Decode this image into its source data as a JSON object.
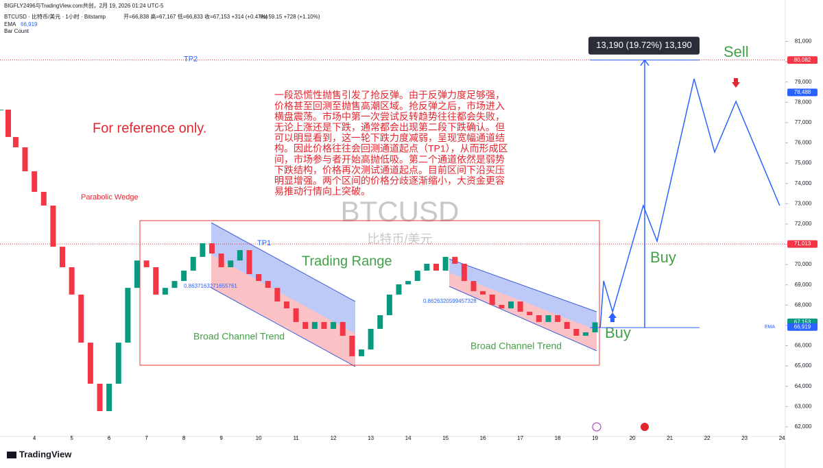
{
  "header": {
    "credit": "BIGFLY2496与TradingView.com共创，2月 19, 2026 01:24 UTC-5",
    "symbol": "BTCUSD · 比特币/美元 · 1小时 · Bitstamp",
    "ohlc": "开=66,838 高=67,167 低=66,833 收=67,153 +314 (+0.47%)",
    "vol": "Vol 59.15 +728 (+1.10%)",
    "ema": "EMA",
    "ema_value": "66,919",
    "bar_count": "Bar Count"
  },
  "chart_data": {
    "type": "candlestick",
    "watermark": "BTCUSD",
    "watermark_sub": "比特币/美元",
    "x": [
      3.1,
      3.3,
      3.5,
      3.75,
      4.0,
      4.25,
      4.5,
      4.75,
      5.0,
      5.25,
      5.5,
      5.75,
      6.0,
      6.25,
      6.5,
      6.75,
      7.0,
      7.25,
      7.5,
      7.75,
      8.0,
      8.25,
      8.5,
      8.75,
      9.0,
      9.25,
      9.5,
      9.75,
      10.0,
      10.25,
      10.5,
      10.75,
      11.0,
      11.25,
      11.5,
      11.75,
      12.0,
      12.25,
      12.5,
      12.75,
      13.0,
      13.25,
      13.5,
      13.75,
      14.0,
      14.25,
      14.5,
      14.75,
      15.0,
      15.25,
      15.5,
      15.75,
      16.0,
      16.25,
      16.5,
      16.75,
      17.0,
      17.25,
      17.5,
      17.75,
      18.0,
      18.25,
      18.5,
      18.75,
      19.0
    ],
    "values": [
      77640,
      76290,
      75780,
      74600,
      73585,
      72910,
      70880,
      69870,
      68520,
      66150,
      64125,
      62775,
      64125,
      66150,
      68850,
      70200,
      69870,
      68520,
      68850,
      69190,
      69700,
      70380,
      71050,
      70545,
      69870,
      70200,
      70710,
      69530,
      69190,
      68850,
      68180,
      67840,
      67170,
      66830,
      67170,
      66830,
      67170,
      66490,
      65480,
      65815,
      66830,
      67505,
      68520,
      69025,
      69190,
      69700,
      70040,
      69700,
      70380,
      70040,
      69190,
      68690,
      68520,
      68010,
      67840,
      68180,
      67675,
      67505,
      67170,
      67505,
      67170,
      66830,
      66490,
      66660,
      67153
    ],
    "color_up": "#089981",
    "color_down": "#f23645",
    "xlim": [
      3.08,
      24.09
    ],
    "xticks": [
      4,
      5,
      6,
      7,
      8,
      9,
      10,
      11,
      12,
      13,
      14,
      15,
      16,
      17,
      18,
      19,
      20,
      21,
      22,
      23,
      24
    ],
    "ylim": [
      61862,
      81794
    ],
    "yticks": [
      {
        "value": 62000,
        "label": "62,000"
      },
      {
        "value": 63000,
        "label": "63,000"
      },
      {
        "value": 64000,
        "label": "64,000"
      },
      {
        "value": 65000,
        "label": "65,000"
      },
      {
        "value": 66000,
        "label": "66,000"
      },
      {
        "value": 67000,
        "label": "67,000"
      },
      {
        "value": 68000,
        "label": "68,000"
      },
      {
        "value": 69000,
        "label": "69,000"
      },
      {
        "value": 70000,
        "label": "70,000"
      },
      {
        "value": 71000,
        "label": "71,000"
      },
      {
        "value": 72000,
        "label": "72,000"
      },
      {
        "value": 73000,
        "label": "73,000"
      },
      {
        "value": 74000,
        "label": "74,000"
      },
      {
        "value": 75000,
        "label": "75,000"
      },
      {
        "value": 76000,
        "label": "76,000"
      },
      {
        "value": 77000,
        "label": "77,000"
      },
      {
        "value": 78000,
        "label": "78,000"
      },
      {
        "value": 79000,
        "label": "79,000"
      },
      {
        "value": 80000,
        "label": "80,000"
      },
      {
        "value": 81000,
        "label": "81,000"
      }
    ],
    "projection": {
      "color": "#2962ff",
      "x": [
        19.14,
        19.23,
        19.47,
        20.29,
        20.66,
        21.65,
        22.2,
        22.77,
        23.94
      ],
      "values": [
        66896,
        69193,
        67673,
        72909,
        71153,
        79159,
        75544,
        78044,
        72909
      ]
    },
    "price_tags": [
      {
        "value": 80082,
        "label": "80,082",
        "color": "#f23645"
      },
      {
        "value": 78488,
        "label": "78,488",
        "color": "#2962ff"
      },
      {
        "value": 71013,
        "label": "71,013",
        "color": "#f23645"
      },
      {
        "value": 67153,
        "label": "67,153",
        "color": "#089981"
      },
      {
        "value": 66919,
        "label": "66,919",
        "color": "#2962ff"
      }
    ],
    "levels": [
      {
        "value": 80082,
        "label": "TP2"
      },
      {
        "value": 71013,
        "label": "TP1"
      }
    ],
    "measure": {
      "from": 66892,
      "to": 80082,
      "label": "13,190 (19.72%) 13,190"
    },
    "annotations": {
      "reference": "For reference only.",
      "wedge": "Parabolic Wedge",
      "range": "Trading Range",
      "channel": "Broad Channel Trend",
      "buy": "Buy",
      "sell": "Sell",
      "fib1": "0.8637163271655761",
      "fib2": "0.8626320599457328",
      "note": [
        "一段恐慌性抛售引发了抢反弹。由于反弹力度足够强，",
        "价格甚至回测至抛售高潮区域。抢反弹之后，市场进入",
        "横盘震荡。市场中第一次尝试反转趋势往往都会失败，",
        "无论上涨还是下跌，通常都会出现第二段下跌确认。但",
        "可以明显看到，这一轮下跌力度减弱，呈现宽幅通道结",
        "构。因此价格往往会回测通道起点（TP1），从而形成区",
        "间，市场参与者开始高抛低吸。第二个通道依然是弱势",
        "下跌结构，价格再次测试通道起点。目前区间下沿买压",
        "明显增强。两个区间的价格分歧逐渐缩小，大资金更容",
        "易推动行情向上突破。"
      ]
    }
  },
  "footer": "TradingView"
}
